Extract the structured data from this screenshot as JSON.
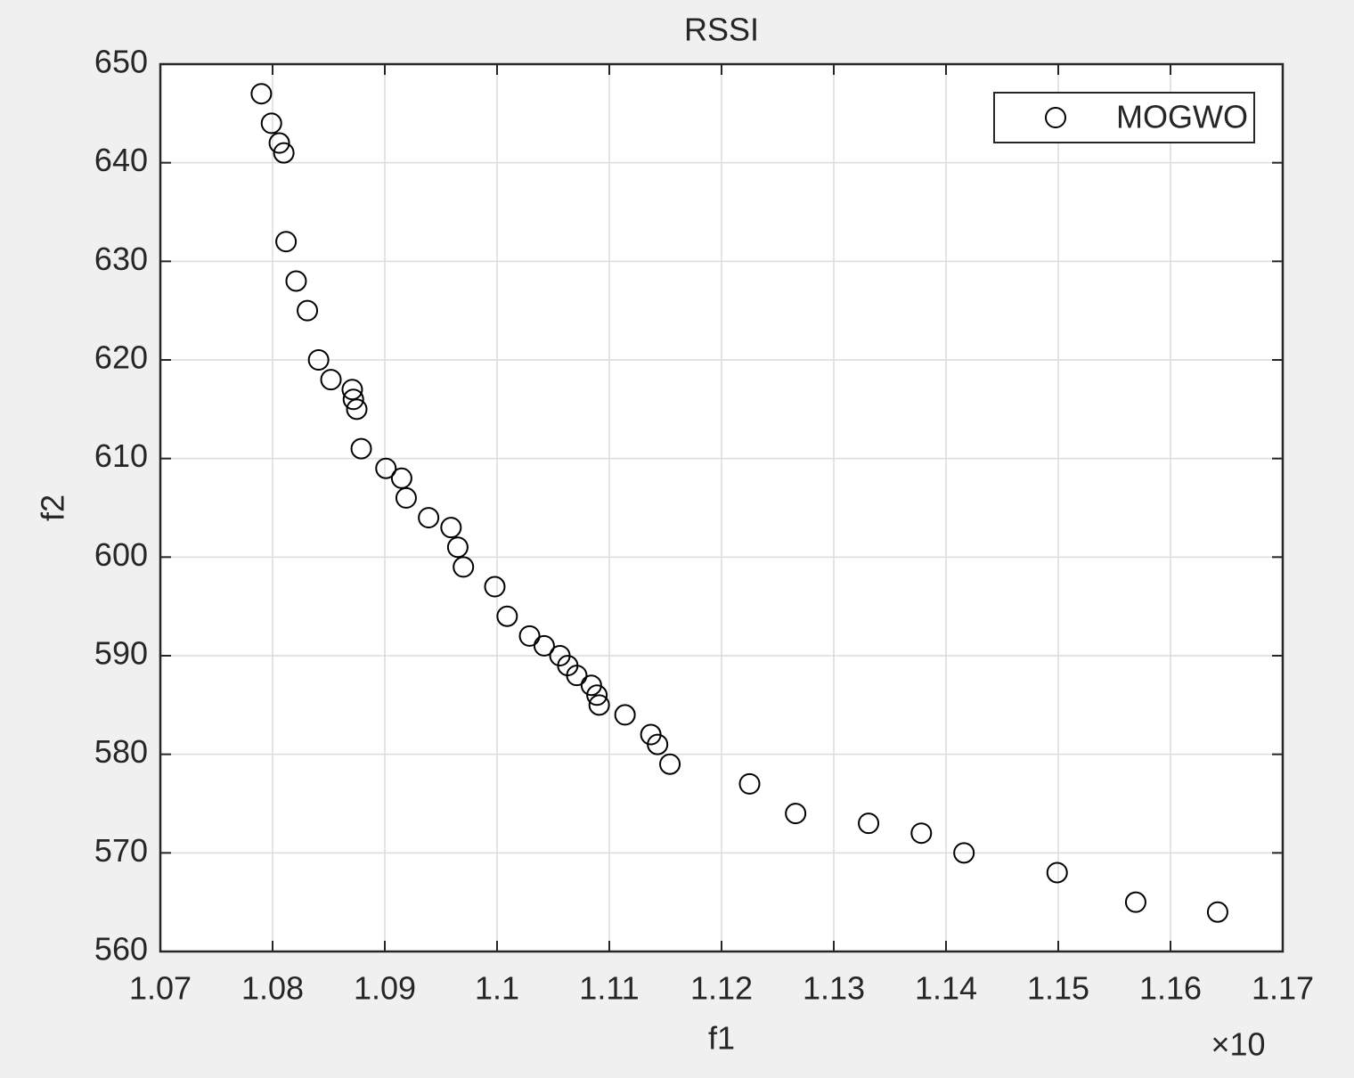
{
  "chart_data": {
    "type": "scatter",
    "title": "RSSI",
    "x_label": "f1",
    "y_label": "f2",
    "x_exponent_label": "×10",
    "xlim": [
      1.07,
      1.17
    ],
    "xticks": [
      1.07,
      1.08,
      1.09,
      1.1,
      1.11,
      1.12,
      1.13,
      1.14,
      1.15,
      1.16,
      1.17
    ],
    "ylim": [
      560,
      650
    ],
    "yticks": [
      560,
      570,
      580,
      590,
      600,
      610,
      620,
      630,
      640,
      650
    ],
    "grid": true,
    "legend": "northeast",
    "series": [
      {
        "name": "MOGWO",
        "color": "#000000",
        "x": [
          1.079,
          1.0799,
          1.0806,
          1.081,
          1.0812,
          1.0821,
          1.0831,
          1.0841,
          1.0852,
          1.0871,
          1.0872,
          1.0875,
          1.0879,
          1.0901,
          1.0915,
          1.0919,
          1.0939,
          1.0959,
          1.0965,
          1.097,
          1.0998,
          1.1009,
          1.1029,
          1.1042,
          1.1056,
          1.1063,
          1.1071,
          1.1084,
          1.1089,
          1.1091,
          1.1114,
          1.1137,
          1.1143,
          1.1154,
          1.1225,
          1.1266,
          1.1331,
          1.1378,
          1.1416,
          1.1499,
          1.1569,
          1.1642
        ],
        "values": [
          647,
          644,
          642,
          641,
          632,
          628,
          625,
          620,
          618,
          617,
          616,
          615,
          611,
          609,
          608,
          606,
          604,
          603,
          601,
          599,
          597,
          594,
          592,
          591,
          590,
          589,
          588,
          587,
          586,
          585,
          584,
          582,
          581,
          579,
          577,
          574,
          573,
          572,
          570,
          568,
          565,
          564
        ]
      }
    ]
  }
}
